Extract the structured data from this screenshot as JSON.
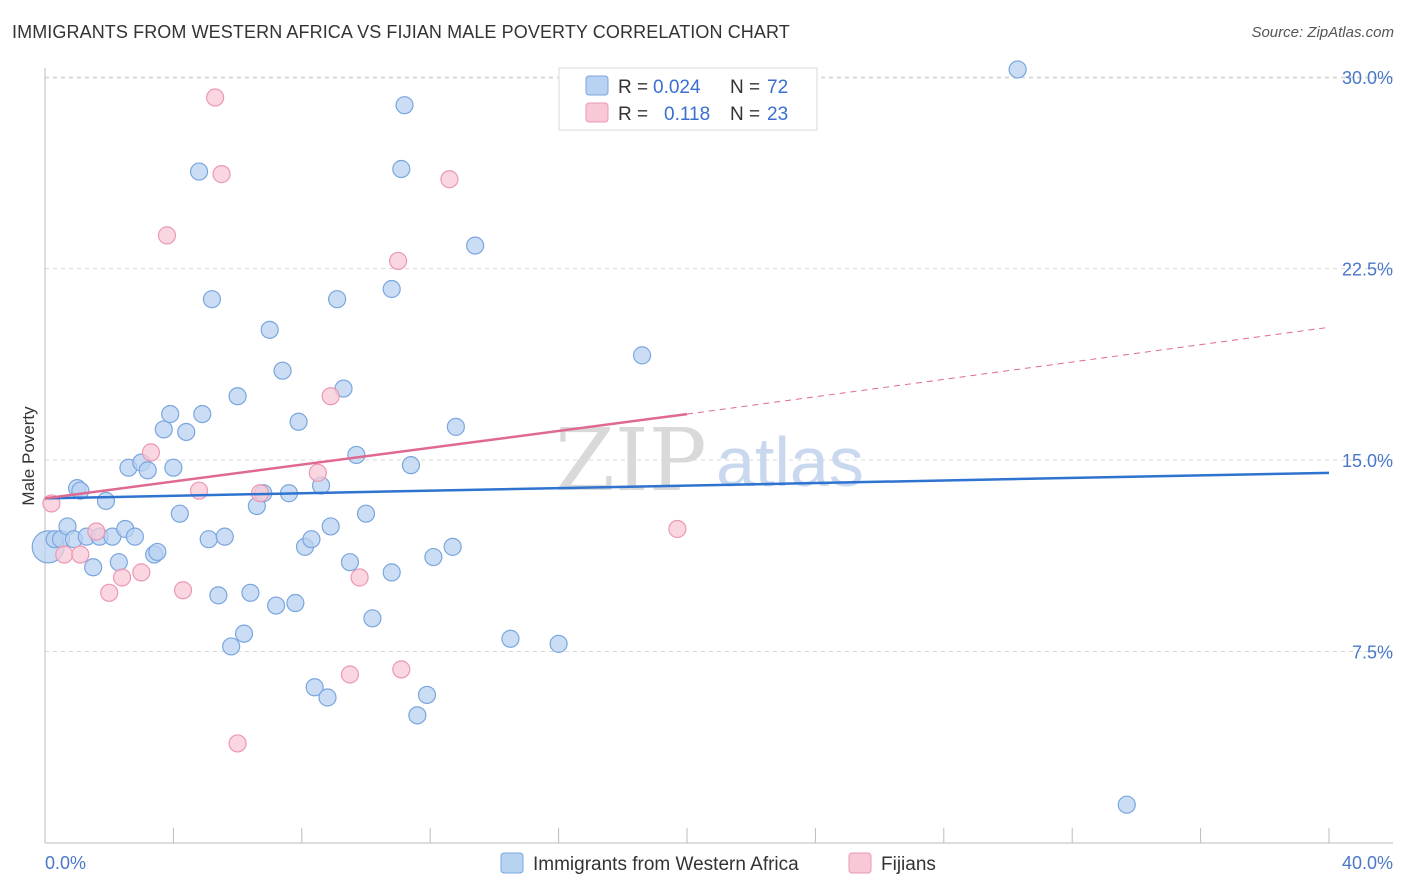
{
  "header": {
    "title": "IMMIGRANTS FROM WESTERN AFRICA VS FIJIAN MALE POVERTY CORRELATION CHART",
    "source": "Source: ZipAtlas.com"
  },
  "watermark": {
    "zip": "ZIP",
    "atlas": "atlas"
  },
  "legend": {
    "r_label": "R =",
    "n_label": "N =",
    "rows": [
      {
        "series": "Immigrants from Western Africa",
        "r": "0.024",
        "n": "72"
      },
      {
        "series": "Fijians",
        "r": "0.118",
        "n": "23"
      }
    ]
  },
  "colors": {
    "blue_fill": "#b8d2f2",
    "blue_stroke": "#7aa6de",
    "blue_line": "#2f73d0",
    "pink_fill": "#f8c8d6",
    "pink_stroke": "#eb98b3",
    "pink_line": "#e06990",
    "grid": "#d8d8d8",
    "axis": "#bbbbbb"
  },
  "chart_data": {
    "type": "scatter",
    "title": "IMMIGRANTS FROM WESTERN AFRICA VS FIJIAN MALE POVERTY CORRELATION CHART",
    "xlabel": "",
    "ylabel": "Male Poverty",
    "xlim": [
      0,
      40
    ],
    "ylim": [
      0,
      30.7
    ],
    "x_tick_labels": [
      "0.0%",
      "40.0%"
    ],
    "y_ticks": [
      7.5,
      15.0,
      22.5,
      30.0
    ],
    "y_tick_labels": [
      "7.5%",
      "15.0%",
      "22.5%",
      "30.0%"
    ],
    "grid": true,
    "legend_position": "top-center",
    "series": [
      {
        "name": "Immigrants from Western Africa",
        "R": 0.024,
        "N": 72,
        "trend": {
          "x0": 0,
          "y0": 13.5,
          "x1": 40,
          "y1": 14.5
        },
        "points": [
          [
            0.1,
            11.6,
            18
          ],
          [
            0.3,
            11.9,
            12
          ],
          [
            0.5,
            11.9,
            10
          ],
          [
            0.7,
            12.4,
            10
          ],
          [
            0.9,
            11.9,
            10
          ],
          [
            1.0,
            13.9,
            10
          ],
          [
            1.1,
            13.8,
            10
          ],
          [
            1.3,
            12.0,
            10
          ],
          [
            1.5,
            10.8,
            10
          ],
          [
            1.7,
            12.0,
            10
          ],
          [
            1.9,
            13.4,
            10
          ],
          [
            2.1,
            12.0,
            10
          ],
          [
            2.3,
            11.0,
            10
          ],
          [
            2.5,
            12.3,
            10
          ],
          [
            2.6,
            14.7,
            10
          ],
          [
            2.8,
            12.0,
            10
          ],
          [
            3.0,
            14.9,
            10
          ],
          [
            3.2,
            14.6,
            10
          ],
          [
            3.4,
            11.3,
            10
          ],
          [
            3.5,
            11.4,
            10
          ],
          [
            3.7,
            16.2,
            10
          ],
          [
            3.9,
            16.8,
            10
          ],
          [
            4.0,
            14.7,
            10
          ],
          [
            4.2,
            12.9,
            10
          ],
          [
            4.4,
            16.1,
            10
          ],
          [
            4.8,
            26.3,
            10
          ],
          [
            4.9,
            16.8,
            10
          ],
          [
            5.1,
            11.9,
            10
          ],
          [
            5.2,
            21.3,
            10
          ],
          [
            5.4,
            9.7,
            10
          ],
          [
            5.6,
            12.0,
            10
          ],
          [
            5.8,
            7.7,
            10
          ],
          [
            6.0,
            17.5,
            10
          ],
          [
            6.2,
            8.2,
            10
          ],
          [
            6.4,
            9.8,
            10
          ],
          [
            6.6,
            13.2,
            10
          ],
          [
            6.8,
            13.7,
            10
          ],
          [
            7.0,
            20.1,
            10
          ],
          [
            7.2,
            9.3,
            10
          ],
          [
            7.4,
            18.5,
            10
          ],
          [
            7.6,
            13.7,
            10
          ],
          [
            7.8,
            9.4,
            10
          ],
          [
            7.9,
            16.5,
            10
          ],
          [
            8.1,
            11.6,
            10
          ],
          [
            8.3,
            11.9,
            10
          ],
          [
            8.4,
            6.1,
            10
          ],
          [
            8.6,
            14.0,
            10
          ],
          [
            8.8,
            5.7,
            10
          ],
          [
            8.9,
            12.4,
            10
          ],
          [
            9.1,
            21.3,
            10
          ],
          [
            9.3,
            17.8,
            10
          ],
          [
            9.5,
            11.0,
            10
          ],
          [
            9.7,
            15.2,
            10
          ],
          [
            10.0,
            12.9,
            10
          ],
          [
            10.2,
            8.8,
            10
          ],
          [
            10.8,
            21.7,
            10
          ],
          [
            10.8,
            10.6,
            10
          ],
          [
            11.1,
            26.4,
            10
          ],
          [
            11.2,
            28.9,
            10
          ],
          [
            11.4,
            14.8,
            10
          ],
          [
            11.6,
            5.0,
            10
          ],
          [
            11.9,
            5.8,
            10
          ],
          [
            12.1,
            11.2,
            10
          ],
          [
            12.7,
            11.6,
            10
          ],
          [
            12.8,
            16.3,
            10
          ],
          [
            13.4,
            23.4,
            10
          ],
          [
            14.5,
            8.0,
            10
          ],
          [
            16.0,
            7.8,
            10
          ],
          [
            16.7,
            29.5,
            10
          ],
          [
            18.6,
            19.1,
            10
          ],
          [
            30.3,
            30.3,
            10
          ],
          [
            33.7,
            1.5,
            10
          ]
        ]
      },
      {
        "name": "Fijians",
        "R": 0.118,
        "N": 23,
        "trend": {
          "x0": 0,
          "y0": 13.5,
          "x1": 20,
          "y1": 16.8
        },
        "trend_dashed_to": {
          "x": 40,
          "y": 20.2
        },
        "points": [
          [
            0.2,
            13.3,
            10
          ],
          [
            0.6,
            11.3,
            10
          ],
          [
            1.1,
            11.3,
            10
          ],
          [
            1.6,
            12.2,
            10
          ],
          [
            2.0,
            9.8,
            10
          ],
          [
            2.4,
            10.4,
            10
          ],
          [
            3.0,
            10.6,
            10
          ],
          [
            3.3,
            15.3,
            10
          ],
          [
            3.8,
            23.8,
            10
          ],
          [
            4.3,
            9.9,
            10
          ],
          [
            4.8,
            13.8,
            10
          ],
          [
            5.3,
            29.2,
            10
          ],
          [
            5.5,
            26.2,
            10
          ],
          [
            6.0,
            3.9,
            10
          ],
          [
            6.7,
            13.7,
            10
          ],
          [
            8.5,
            14.5,
            10
          ],
          [
            8.9,
            17.5,
            10
          ],
          [
            9.5,
            6.6,
            10
          ],
          [
            9.8,
            10.4,
            10
          ],
          [
            11.0,
            22.8,
            10
          ],
          [
            11.1,
            6.8,
            10
          ],
          [
            12.6,
            26.0,
            10
          ],
          [
            19.7,
            12.3,
            10
          ]
        ]
      }
    ]
  }
}
